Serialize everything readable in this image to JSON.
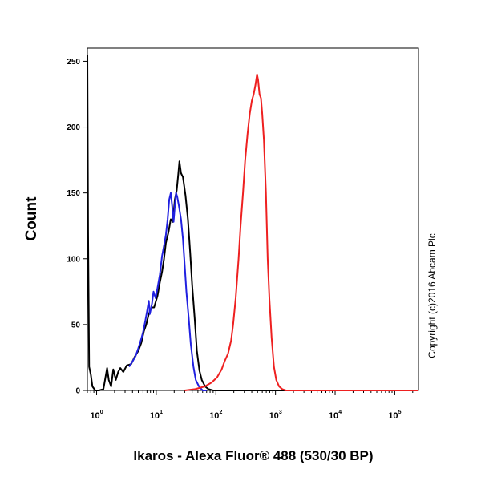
{
  "chart_data": {
    "type": "line",
    "title": "",
    "xlabel": "Ikaros - Alexa Fluor® 488 (530/30 BP)",
    "ylabel": "Count",
    "xscale": "log",
    "xlim": [
      0.7,
      250000
    ],
    "ylim": [
      0,
      260
    ],
    "grid": false,
    "legend": "none",
    "y_ticks": [
      0,
      50,
      100,
      150,
      200,
      250
    ],
    "x_ticks": [
      {
        "value": 1,
        "base": "10",
        "exp": "0"
      },
      {
        "value": 10,
        "base": "10",
        "exp": "1"
      },
      {
        "value": 100,
        "base": "10",
        "exp": "2"
      },
      {
        "value": 1000,
        "base": "10",
        "exp": "3"
      },
      {
        "value": 10000,
        "base": "10",
        "exp": "4"
      },
      {
        "value": 100000,
        "base": "10",
        "exp": "5"
      }
    ],
    "annotation": "Copyright (c)2016 Abcam Plc",
    "series": [
      {
        "color": "#000000",
        "points": [
          [
            0.7,
            255
          ],
          [
            0.72,
            120
          ],
          [
            0.75,
            18
          ],
          [
            0.8,
            12
          ],
          [
            0.85,
            3
          ],
          [
            0.95,
            0
          ],
          [
            1.1,
            0
          ],
          [
            1.3,
            1
          ],
          [
            1.5,
            17
          ],
          [
            1.6,
            8
          ],
          [
            1.75,
            3
          ],
          [
            1.9,
            16
          ],
          [
            2.1,
            8
          ],
          [
            2.3,
            14
          ],
          [
            2.5,
            17
          ],
          [
            2.8,
            14
          ],
          [
            3.2,
            19
          ],
          [
            3.8,
            20
          ],
          [
            4.3,
            25
          ],
          [
            5,
            30
          ],
          [
            5.6,
            36
          ],
          [
            6.2,
            45
          ],
          [
            6.8,
            50
          ],
          [
            7.5,
            58
          ],
          [
            8.3,
            63
          ],
          [
            9.2,
            63
          ],
          [
            10.5,
            72
          ],
          [
            11.5,
            82
          ],
          [
            12.5,
            90
          ],
          [
            13.5,
            100
          ],
          [
            14.5,
            112
          ],
          [
            16,
            120
          ],
          [
            17.5,
            130
          ],
          [
            19,
            128
          ],
          [
            20.5,
            145
          ],
          [
            22,
            152
          ],
          [
            23.5,
            165
          ],
          [
            24.5,
            174
          ],
          [
            26,
            165
          ],
          [
            28,
            162
          ],
          [
            31,
            148
          ],
          [
            34,
            130
          ],
          [
            37,
            105
          ],
          [
            40,
            80
          ],
          [
            44,
            55
          ],
          [
            48,
            30
          ],
          [
            53,
            15
          ],
          [
            58,
            8
          ],
          [
            66,
            3
          ],
          [
            75,
            1
          ],
          [
            90,
            0
          ],
          [
            250000,
            0
          ]
        ]
      },
      {
        "color": "#2020e0",
        "points": [
          [
            3.5,
            18
          ],
          [
            4,
            22
          ],
          [
            4.5,
            26
          ],
          [
            5,
            32
          ],
          [
            5.5,
            38
          ],
          [
            6,
            44
          ],
          [
            6.5,
            52
          ],
          [
            7,
            60
          ],
          [
            7.5,
            68
          ],
          [
            7.8,
            58
          ],
          [
            8.5,
            66
          ],
          [
            9,
            75
          ],
          [
            9.8,
            70
          ],
          [
            10.5,
            78
          ],
          [
            11.5,
            88
          ],
          [
            12.5,
            102
          ],
          [
            13.5,
            110
          ],
          [
            14.5,
            118
          ],
          [
            15.5,
            130
          ],
          [
            16.5,
            145
          ],
          [
            17.5,
            150
          ],
          [
            18.5,
            140
          ],
          [
            19.5,
            128
          ],
          [
            20.5,
            140
          ],
          [
            21.5,
            150
          ],
          [
            22.5,
            147
          ],
          [
            24,
            140
          ],
          [
            26,
            130
          ],
          [
            28,
            115
          ],
          [
            30,
            95
          ],
          [
            32,
            75
          ],
          [
            35,
            55
          ],
          [
            38,
            35
          ],
          [
            42,
            18
          ],
          [
            46,
            8
          ],
          [
            52,
            3
          ],
          [
            60,
            0
          ],
          [
            70,
            0
          ]
        ]
      },
      {
        "color": "#ee2020",
        "points": [
          [
            30,
            0
          ],
          [
            45,
            1
          ],
          [
            65,
            3
          ],
          [
            85,
            6
          ],
          [
            105,
            10
          ],
          [
            125,
            16
          ],
          [
            140,
            22
          ],
          [
            160,
            28
          ],
          [
            180,
            38
          ],
          [
            195,
            50
          ],
          [
            215,
            70
          ],
          [
            240,
            100
          ],
          [
            260,
            125
          ],
          [
            285,
            150
          ],
          [
            310,
            175
          ],
          [
            340,
            195
          ],
          [
            370,
            210
          ],
          [
            400,
            220
          ],
          [
            430,
            225
          ],
          [
            460,
            232
          ],
          [
            490,
            240
          ],
          [
            510,
            236
          ],
          [
            540,
            225
          ],
          [
            570,
            222
          ],
          [
            600,
            210
          ],
          [
            640,
            190
          ],
          [
            690,
            150
          ],
          [
            740,
            100
          ],
          [
            790,
            70
          ],
          [
            860,
            40
          ],
          [
            940,
            18
          ],
          [
            1030,
            8
          ],
          [
            1150,
            3
          ],
          [
            1300,
            1
          ],
          [
            1500,
            0
          ],
          [
            250000,
            0
          ]
        ]
      }
    ]
  }
}
